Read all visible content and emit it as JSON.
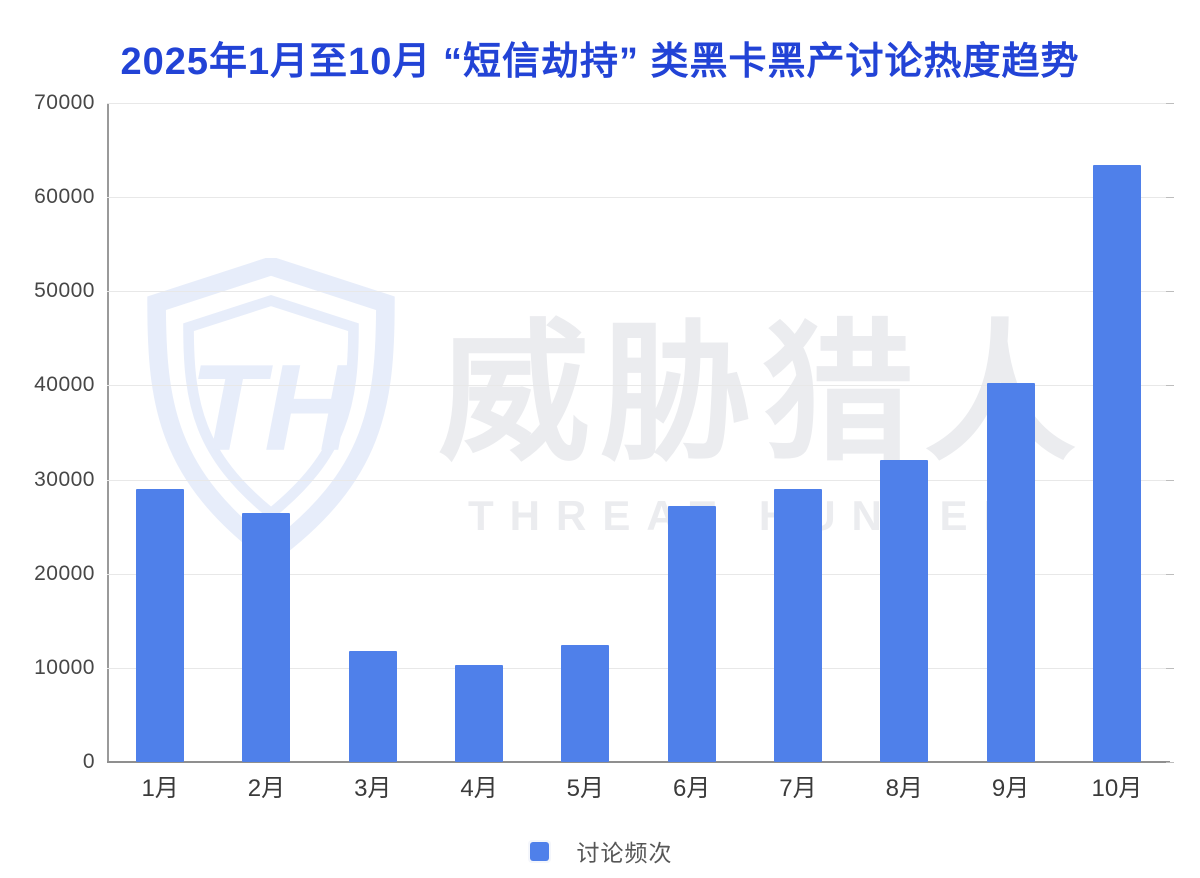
{
  "page": {
    "background": "#ffffff"
  },
  "chart_data": {
    "type": "bar",
    "title": "2025年1月至10月 “短信劫持” 类黑卡黑产讨论热度趋势",
    "categories": [
      "1月",
      "2月",
      "3月",
      "4月",
      "5月",
      "6月",
      "7月",
      "8月",
      "9月",
      "10月"
    ],
    "series": [
      {
        "name": "讨论频次",
        "values": [
          29000,
          26500,
          11800,
          10300,
          12400,
          27200,
          29000,
          32100,
          40300,
          63400
        ]
      }
    ],
    "ylim": [
      0,
      70000
    ],
    "yticks": [
      0,
      10000,
      20000,
      30000,
      40000,
      50000,
      60000,
      70000
    ],
    "xlabel": "",
    "ylabel": "",
    "grid": "horizontal",
    "legend_position": "bottom-center"
  },
  "legend": {
    "label": "讨论频次"
  },
  "watermark": {
    "logo_letters": "TH",
    "cn_text": "威胁猎人",
    "en_text": "THREAT HUNTER"
  },
  "colors": {
    "title": "#2243d6",
    "bar": "#4f80ea",
    "axis_line": "#9a9a9a",
    "gridline": "#e8e8e8",
    "tick_text": "#474747",
    "watermark": "#ebecef",
    "watermark_shield": "#e7edfa"
  }
}
